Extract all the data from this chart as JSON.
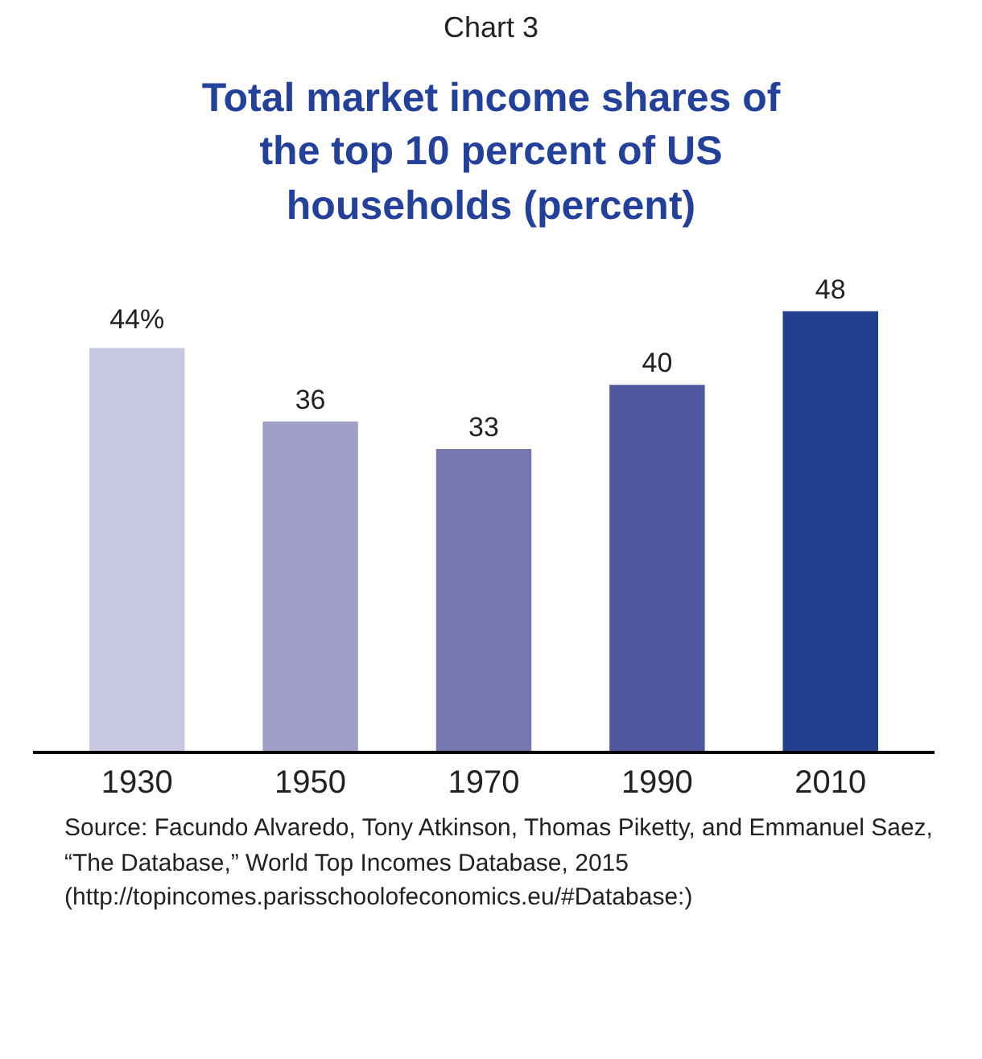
{
  "chart_data": {
    "type": "bar",
    "subtitle": "Chart 3",
    "title": "Total market income shares of the top 10 percent of US households (percent)",
    "categories": [
      "1930",
      "1950",
      "1970",
      "1990",
      "2010"
    ],
    "values": [
      44,
      36,
      33,
      40,
      48
    ],
    "colors": [
      "#c8c8e2",
      "#a09fc8",
      "#7878b0",
      "#5058a0",
      "#233f8e"
    ],
    "value_labels": [
      "44%",
      "36",
      "33",
      "40",
      "48"
    ],
    "annotations": [
      "Source: Facundo Alvaredo, Tony Atkinson, Thomas Piketty, and Emmanuel Saez, “The Database,” World Top Incomes Database, 2015 (http://topincomes.parisschoolofeconomics.eu/#Database:)"
    ],
    "grid": false
  }
}
